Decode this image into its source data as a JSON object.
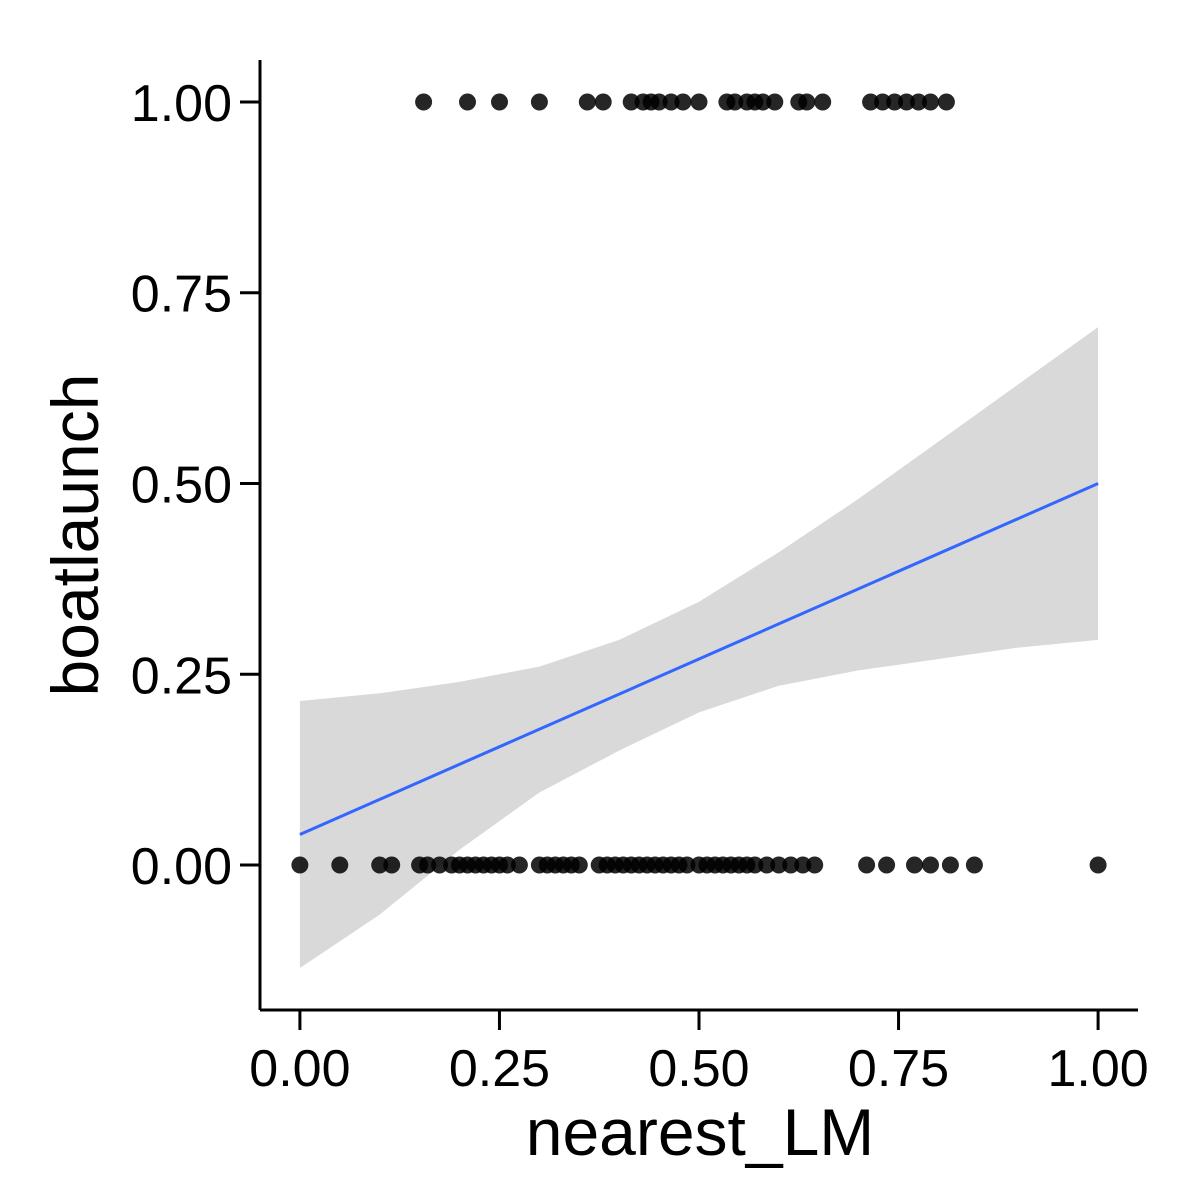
{
  "chart_data": {
    "type": "scatter",
    "title": "",
    "xlabel": "nearest_LM",
    "ylabel": "boatlaunch",
    "xlim": [
      -0.05,
      1.05
    ],
    "ylim": [
      -0.19,
      1.055
    ],
    "xticks": [
      0,
      0.25,
      0.5,
      0.75,
      1
    ],
    "xtick_labels": [
      "0.00",
      "0.25",
      "0.50",
      "0.75",
      "1.00"
    ],
    "yticks": [
      0,
      0.25,
      0.5,
      0.75,
      1
    ],
    "ytick_labels": [
      "0.00",
      "0.25",
      "0.50",
      "0.75",
      "1.00"
    ],
    "grid": false,
    "legend": "none",
    "colors": {
      "points": "#000000",
      "fit_line": "#3366ff",
      "confidence_band": "#d9d9d9",
      "axis": "#000000"
    },
    "series": [
      {
        "x": [
          0.155,
          0.21,
          0.25,
          0.3,
          0.36,
          0.38,
          0.415,
          0.43,
          0.44,
          0.45,
          0.465,
          0.48,
          0.5,
          0.535,
          0.545,
          0.56,
          0.57,
          0.58,
          0.595,
          0.625,
          0.635,
          0.655,
          0.715,
          0.73,
          0.745,
          0.76,
          0.775,
          0.79,
          0.81
        ],
        "y": [
          1,
          1,
          1,
          1,
          1,
          1,
          1,
          1,
          1,
          1,
          1,
          1,
          1,
          1,
          1,
          1,
          1,
          1,
          1,
          1,
          1,
          1,
          1,
          1,
          1,
          1,
          1,
          1,
          1
        ]
      },
      {
        "x": [
          0.0,
          0.05,
          0.1,
          0.115,
          0.15,
          0.16,
          0.175,
          0.19,
          0.2,
          0.21,
          0.22,
          0.23,
          0.24,
          0.25,
          0.26,
          0.275,
          0.3,
          0.31,
          0.32,
          0.33,
          0.34,
          0.35,
          0.375,
          0.385,
          0.395,
          0.405,
          0.415,
          0.425,
          0.435,
          0.445,
          0.455,
          0.465,
          0.475,
          0.485,
          0.5,
          0.51,
          0.52,
          0.53,
          0.54,
          0.55,
          0.56,
          0.57,
          0.585,
          0.6,
          0.615,
          0.63,
          0.645,
          0.71,
          0.735,
          0.77,
          0.79,
          0.815,
          0.845,
          1.0
        ],
        "y": [
          0,
          0,
          0,
          0,
          0,
          0,
          0,
          0,
          0,
          0,
          0,
          0,
          0,
          0,
          0,
          0,
          0,
          0,
          0,
          0,
          0,
          0,
          0,
          0,
          0,
          0,
          0,
          0,
          0,
          0,
          0,
          0,
          0,
          0,
          0,
          0,
          0,
          0,
          0,
          0,
          0,
          0,
          0,
          0,
          0,
          0,
          0,
          0,
          0,
          0,
          0,
          0,
          0,
          0
        ]
      }
    ],
    "fit": {
      "method": "linear",
      "x": [
        0.0,
        0.5,
        1.0
      ],
      "y": [
        0.04,
        0.27,
        0.5
      ]
    },
    "confidence_band": {
      "x": [
        0.0,
        0.1,
        0.2,
        0.3,
        0.4,
        0.5,
        0.6,
        0.7,
        0.8,
        0.9,
        1.0
      ],
      "lower": [
        -0.135,
        -0.065,
        0.02,
        0.095,
        0.15,
        0.2,
        0.235,
        0.255,
        0.27,
        0.285,
        0.295
      ],
      "upper": [
        0.215,
        0.225,
        0.24,
        0.26,
        0.295,
        0.345,
        0.41,
        0.48,
        0.555,
        0.63,
        0.705
      ]
    }
  }
}
